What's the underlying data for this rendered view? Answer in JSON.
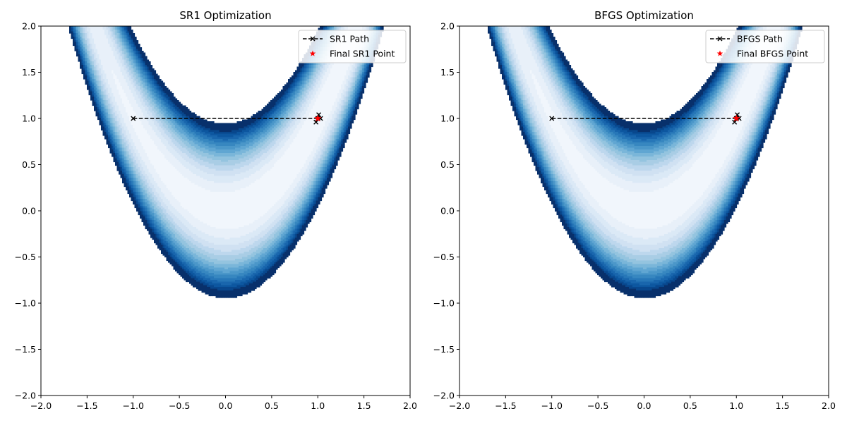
{
  "chart_data": [
    {
      "type": "contour",
      "title": "SR1 Optimization",
      "xlim": [
        -2.0,
        2.0
      ],
      "ylim": [
        -2.0,
        2.0
      ],
      "xticks": [
        "−2.0",
        "−1.5",
        "−1.0",
        "−0.5",
        "0.0",
        "0.5",
        "1.0",
        "1.5",
        "2.0"
      ],
      "yticks": [
        "−2.0",
        "−1.5",
        "−1.0",
        "−0.5",
        "0.0",
        "0.5",
        "1.0",
        "1.5",
        "2.0"
      ],
      "legend_position": "top-right",
      "contour": {
        "function": "rosenbrock",
        "colormap": "Blues",
        "levels": [
          0,
          5,
          10,
          15,
          20,
          25,
          30,
          35,
          40,
          45,
          50,
          55,
          60,
          65,
          70,
          75,
          80,
          85,
          90
        ],
        "colors": [
          "#f1f6fc",
          "#e8f0f9",
          "#dbe9f6",
          "#d0e1f2",
          "#bdd7ed",
          "#a9cde5",
          "#94c4df",
          "#7ab6d9",
          "#60a6d2",
          "#4b97c9",
          "#3787c0",
          "#2777b8",
          "#1966ad",
          "#0d57a0",
          "#08478d",
          "#08306b"
        ]
      },
      "series": [
        {
          "name": "SR1 Path",
          "style": "dashed-x",
          "x": [
            -1.0,
            1.0,
            0.98,
            1.03,
            1.01,
            1.0
          ],
          "y": [
            1.0,
            1.0,
            0.96,
            1.0,
            1.04,
            1.0
          ]
        },
        {
          "name": "Final SR1 Point",
          "style": "red-star",
          "x": [
            1.0
          ],
          "y": [
            1.0
          ]
        }
      ]
    },
    {
      "type": "contour",
      "title": "BFGS Optimization",
      "xlim": [
        -2.0,
        2.0
      ],
      "ylim": [
        -2.0,
        2.0
      ],
      "xticks": [
        "−2.0",
        "−1.5",
        "−1.0",
        "−0.5",
        "0.0",
        "0.5",
        "1.0",
        "1.5",
        "2.0"
      ],
      "yticks": [
        "−2.0",
        "−1.5",
        "−1.0",
        "−0.5",
        "0.0",
        "0.5",
        "1.0",
        "1.5",
        "2.0"
      ],
      "legend_position": "top-right",
      "contour": {
        "function": "rosenbrock",
        "colormap": "Blues",
        "levels": [
          0,
          5,
          10,
          15,
          20,
          25,
          30,
          35,
          40,
          45,
          50,
          55,
          60,
          65,
          70,
          75,
          80,
          85,
          90
        ],
        "colors": [
          "#f1f6fc",
          "#e8f0f9",
          "#dbe9f6",
          "#d0e1f2",
          "#bdd7ed",
          "#a9cde5",
          "#94c4df",
          "#7ab6d9",
          "#60a6d2",
          "#4b97c9",
          "#3787c0",
          "#2777b8",
          "#1966ad",
          "#0d57a0",
          "#08478d",
          "#08306b"
        ]
      },
      "series": [
        {
          "name": "BFGS Path",
          "style": "dashed-x",
          "x": [
            -1.0,
            1.0,
            0.98,
            1.03,
            1.01,
            1.0
          ],
          "y": [
            1.0,
            1.0,
            0.96,
            1.0,
            1.04,
            1.0
          ]
        },
        {
          "name": "Final BFGS Point",
          "style": "red-star",
          "x": [
            1.0
          ],
          "y": [
            1.0
          ]
        }
      ]
    }
  ]
}
